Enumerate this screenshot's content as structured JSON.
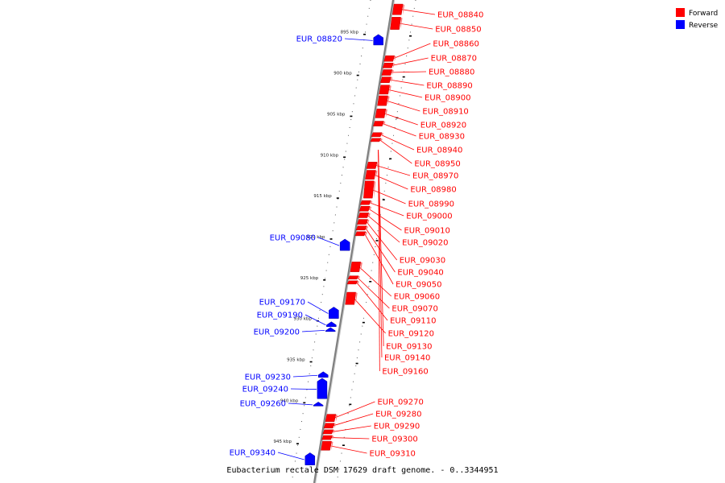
{
  "title": "Eubacterium rectale DSM 17629 draft genome. - 0..3344951",
  "legend": [
    {
      "label": "Forward",
      "color": "#ff0000"
    },
    {
      "label": "Reverse",
      "color": "#0000ff"
    }
  ],
  "colors": {
    "forward": "#ff0000",
    "reverse": "#0000ff",
    "backbone": "#808080"
  },
  "ticks": [
    {
      "pos": 895,
      "label": "895 kbp"
    },
    {
      "pos": 900,
      "label": "900 kbp"
    },
    {
      "pos": 905,
      "label": "905 kbp"
    },
    {
      "pos": 910,
      "label": "910 kbp"
    },
    {
      "pos": 915,
      "label": "915 kbp"
    },
    {
      "pos": 920,
      "label": "920 kbp"
    },
    {
      "pos": 925,
      "label": "925 kbp"
    },
    {
      "pos": 930,
      "label": "930 kbp"
    },
    {
      "pos": 935,
      "label": "935 kbp"
    },
    {
      "pos": 940,
      "label": "940 kbp"
    },
    {
      "pos": 945,
      "label": "945 kbp"
    }
  ],
  "forward_genes": [
    {
      "id": "EUR_08840",
      "start": 891.3,
      "end": 892.6
    },
    {
      "id": "EUR_08850",
      "start": 892.9,
      "end": 894.4
    },
    {
      "id": "EUR_08860",
      "start": 897.6,
      "end": 898.3
    },
    {
      "id": "EUR_08870",
      "start": 898.5,
      "end": 899.1
    },
    {
      "id": "EUR_08880",
      "start": 899.3,
      "end": 900.0
    },
    {
      "id": "EUR_08890",
      "start": 900.2,
      "end": 900.9
    },
    {
      "id": "EUR_08900",
      "start": 901.2,
      "end": 902.3
    },
    {
      "id": "EUR_08910",
      "start": 902.5,
      "end": 903.7
    },
    {
      "id": "EUR_08920",
      "start": 904.1,
      "end": 905.2
    },
    {
      "id": "EUR_08930",
      "start": 905.6,
      "end": 906.2
    },
    {
      "id": "EUR_08940",
      "start": 907.0,
      "end": 907.5
    },
    {
      "id": "EUR_08950",
      "start": 907.7,
      "end": 908.1
    },
    {
      "id": "EUR_08970",
      "start": 910.6,
      "end": 911.4
    },
    {
      "id": "EUR_08980",
      "start": 911.6,
      "end": 912.7
    },
    {
      "id": "EUR_08990",
      "start": 912.9,
      "end": 915.0
    },
    {
      "id": "EUR_09000",
      "start": 915.3,
      "end": 915.8
    },
    {
      "id": "EUR_09010",
      "start": 916.0,
      "end": 916.6
    },
    {
      "id": "EUR_09020",
      "start": 916.8,
      "end": 917.4
    },
    {
      "id": "EUR_09030",
      "start": 917.6,
      "end": 918.2
    },
    {
      "id": "EUR_09040",
      "start": 918.4,
      "end": 918.9
    },
    {
      "id": "EUR_09050",
      "start": 919.1,
      "end": 919.6
    },
    {
      "id": "EUR_09060",
      "start": 922.8,
      "end": 924.0
    },
    {
      "id": "EUR_09070",
      "start": 924.5,
      "end": 924.9
    },
    {
      "id": "EUR_09110",
      "start": 925.1,
      "end": 925.5
    },
    {
      "id": "EUR_09120",
      "start": 926.5,
      "end": 928.0
    },
    {
      "id": "EUR_09130",
      "start": 909.0,
      "end": 909.0
    },
    {
      "id": "EUR_09140",
      "start": 909.0,
      "end": 909.0
    },
    {
      "id": "EUR_09160",
      "start": 909.0,
      "end": 909.0
    },
    {
      "id": "EUR_09270",
      "start": 941.4,
      "end": 942.3
    },
    {
      "id": "EUR_09280",
      "start": 942.5,
      "end": 943.1
    },
    {
      "id": "EUR_09290",
      "start": 943.3,
      "end": 943.8
    },
    {
      "id": "EUR_09300",
      "start": 944.0,
      "end": 944.5
    },
    {
      "id": "EUR_09310",
      "start": 944.7,
      "end": 945.8
    }
  ],
  "reverse_genes": [
    {
      "id": "EUR_08820",
      "start": 895.2,
      "end": 896.3
    },
    {
      "id": "EUR_09080",
      "start": 920.2,
      "end": 921.4
    },
    {
      "id": "EUR_09170",
      "start": 928.5,
      "end": 929.7
    },
    {
      "id": "EUR_09190",
      "start": 930.3,
      "end": 930.7
    },
    {
      "id": "EUR_09200",
      "start": 931.0,
      "end": 931.3
    },
    {
      "id": "EUR_09230",
      "start": 936.4,
      "end": 936.9
    },
    {
      "id": "EUR_09240",
      "start": 937.2,
      "end": 939.5
    },
    {
      "id": "EUR_09260",
      "start": 940.1,
      "end": 940.4
    },
    {
      "id": "EUR_09340",
      "start": 946.3,
      "end": 947.6
    }
  ]
}
